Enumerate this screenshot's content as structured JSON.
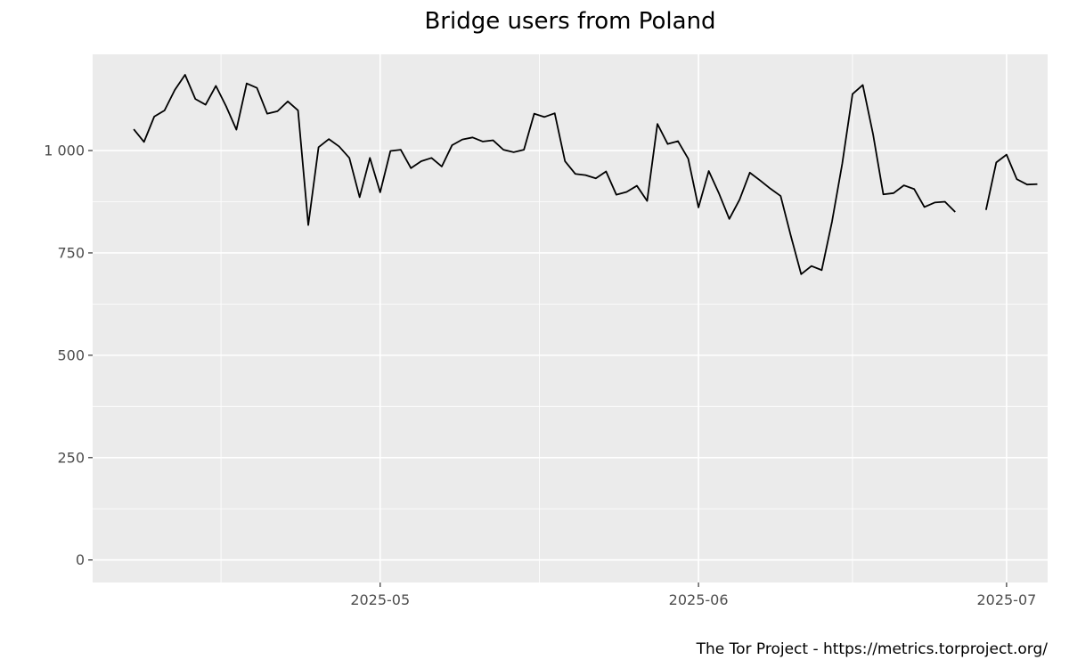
{
  "chart_data": {
    "type": "line",
    "title": "Bridge users from Poland",
    "caption": "The Tor Project - https://metrics.torproject.org/",
    "xlabel": "",
    "ylabel": "",
    "grid": true,
    "background_color": "#ebebeb",
    "line_color": "#000000",
    "xlim": [
      "2025-04-03",
      "2025-07-05"
    ],
    "ylim": [
      -55,
      1235
    ],
    "x_ticks": [
      {
        "date": "2025-05-01",
        "label": "2025-05"
      },
      {
        "date": "2025-06-01",
        "label": "2025-06"
      },
      {
        "date": "2025-07-01",
        "label": "2025-07"
      }
    ],
    "y_ticks": [
      {
        "value": 0,
        "label": "0"
      },
      {
        "value": 250,
        "label": "250"
      },
      {
        "value": 500,
        "label": "500"
      },
      {
        "value": 750,
        "label": "750"
      },
      {
        "value": 1000,
        "label": "1 000"
      }
    ],
    "series": [
      {
        "start_date": "2025-04-07",
        "values": [
          1052,
          1021,
          1083,
          1098,
          1148,
          1185,
          1126,
          1112,
          1158,
          1108,
          1051,
          1164,
          1153,
          1090,
          1096,
          1120,
          1098,
          818,
          1008,
          1028,
          1010,
          982,
          886,
          982,
          898,
          999,
          1002,
          957,
          974,
          982,
          961,
          1013,
          1027,
          1032,
          1022,
          1025,
          1002,
          996,
          1002,
          1090,
          1082,
          1091,
          974,
          943,
          940,
          932,
          949,
          892,
          899,
          914,
          877,
          1065,
          1016,
          1023,
          980,
          861,
          950,
          895,
          833,
          880,
          946,
          927,
          907,
          889,
          791,
          698,
          718,
          708,
          826,
          968,
          1138,
          1160,
          1040,
          893,
          896,
          915,
          906,
          862,
          873,
          875,
          850,
          null,
          null,
          855,
          971,
          990,
          930,
          917,
          918
        ]
      }
    ]
  }
}
